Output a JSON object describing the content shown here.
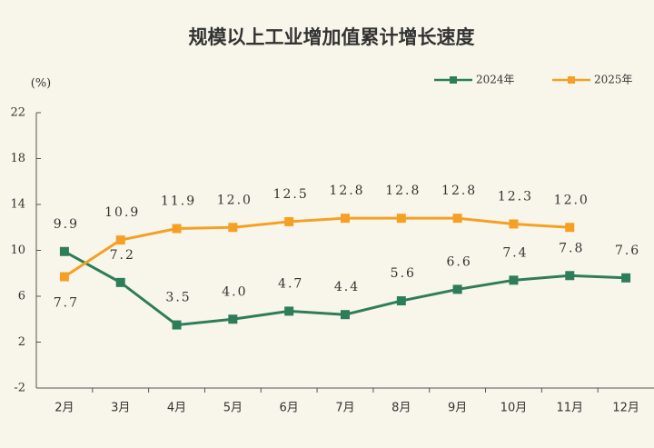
{
  "chart_data": {
    "type": "line",
    "title": "规模以上工业增加值累计增长速度",
    "y_label": "(%)",
    "categories": [
      "2月",
      "3月",
      "4月",
      "5月",
      "6月",
      "7月",
      "8月",
      "9月",
      "10月",
      "11月",
      "12月"
    ],
    "series": [
      {
        "name": "2024年",
        "color": "#2e7d5a",
        "values": [
          9.9,
          7.2,
          3.5,
          4.0,
          4.7,
          4.4,
          5.6,
          6.6,
          7.4,
          7.8,
          7.6
        ],
        "value_labels": [
          "9.9",
          "7.2",
          "3.5",
          "4.0",
          "4.7",
          "4.4",
          "5.6",
          "6.6",
          "7.4",
          "7.8",
          "7.6"
        ]
      },
      {
        "name": "2025年",
        "color": "#f5a025",
        "values": [
          7.7,
          10.9,
          11.9,
          12.0,
          12.5,
          12.8,
          12.8,
          12.8,
          12.3,
          12.0,
          null
        ],
        "value_labels": [
          "7.7",
          "10.9",
          "11.9",
          "12.0",
          "12.5",
          "12.8",
          "12.8",
          "12.8",
          "12.3",
          "12.0",
          null
        ]
      }
    ],
    "ylim": [
      -2,
      22
    ],
    "yticks": [
      -2,
      2,
      6,
      10,
      14,
      18,
      22
    ],
    "legend": "top-right"
  }
}
